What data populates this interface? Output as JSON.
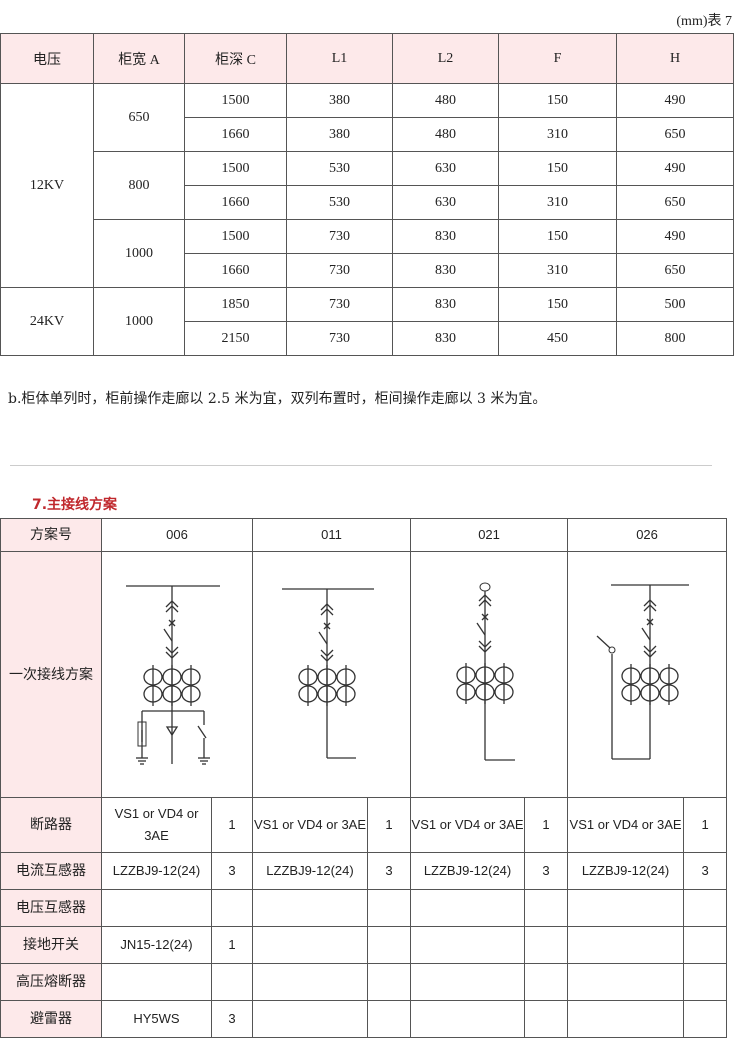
{
  "table1": {
    "unit_label": "(mm)表 7",
    "headers": [
      "电压",
      "柜宽 A",
      "柜深 C",
      "L1",
      "L2",
      "F",
      "H"
    ],
    "groups": [
      {
        "voltage": "12KV",
        "widths": [
          {
            "width": "650",
            "rows": [
              [
                "1500",
                "380",
                "480",
                "150",
                "490"
              ],
              [
                "1660",
                "380",
                "480",
                "310",
                "650"
              ]
            ]
          },
          {
            "width": "800",
            "rows": [
              [
                "1500",
                "530",
                "630",
                "150",
                "490"
              ],
              [
                "1660",
                "530",
                "630",
                "310",
                "650"
              ]
            ]
          },
          {
            "width": "1000",
            "rows": [
              [
                "1500",
                "730",
                "830",
                "150",
                "490"
              ],
              [
                "1660",
                "730",
                "830",
                "310",
                "650"
              ]
            ]
          }
        ]
      },
      {
        "voltage": "24KV",
        "widths": [
          {
            "width": "1000",
            "rows": [
              [
                "1850",
                "730",
                "830",
                "150",
                "500"
              ],
              [
                "2150",
                "730",
                "830",
                "450",
                "800"
              ]
            ]
          }
        ]
      }
    ]
  },
  "note": "b.柜体单列时，柜前操作走廊以 2.5 米为宜，双列布置时，柜间操作走廊以 3 米为宜。",
  "section_title": "7.主接线方案",
  "table2": {
    "header_label": "方案号",
    "schemes": [
      "006",
      "011",
      "021",
      "026"
    ],
    "diagram_label": "一次接线方案",
    "rows": [
      {
        "label": "断路器",
        "cells": [
          [
            "VS1 or VD4 or 3AE",
            "1"
          ],
          [
            "VS1 or VD4 or 3AE",
            "1"
          ],
          [
            "VS1 or VD4 or 3AE",
            "1"
          ],
          [
            "VS1 or VD4 or 3AE",
            "1"
          ]
        ]
      },
      {
        "label": "电流互感器",
        "cells": [
          [
            "LZZBJ9-12(24)",
            "3"
          ],
          [
            "LZZBJ9-12(24)",
            "3"
          ],
          [
            "LZZBJ9-12(24)",
            "3"
          ],
          [
            "LZZBJ9-12(24)",
            "3"
          ]
        ]
      },
      {
        "label": "电压互感器",
        "cells": [
          [
            "",
            ""
          ],
          [
            "",
            ""
          ],
          [
            "",
            ""
          ],
          [
            "",
            ""
          ]
        ]
      },
      {
        "label": "接地开关",
        "cells": [
          [
            "JN15-12(24)",
            "1"
          ],
          [
            "",
            ""
          ],
          [
            "",
            ""
          ],
          [
            "",
            ""
          ]
        ]
      },
      {
        "label": "高压熔断器",
        "cells": [
          [
            "",
            ""
          ],
          [
            "",
            ""
          ],
          [
            "",
            ""
          ],
          [
            "",
            ""
          ]
        ]
      },
      {
        "label": "避雷器",
        "cells": [
          [
            "HY5WS",
            "3"
          ],
          [
            "",
            ""
          ],
          [
            "",
            ""
          ],
          [
            "",
            ""
          ]
        ]
      }
    ]
  },
  "colors": {
    "header_bg": "#fde9ea",
    "section_title": "#c0282d",
    "border": "#555555"
  }
}
